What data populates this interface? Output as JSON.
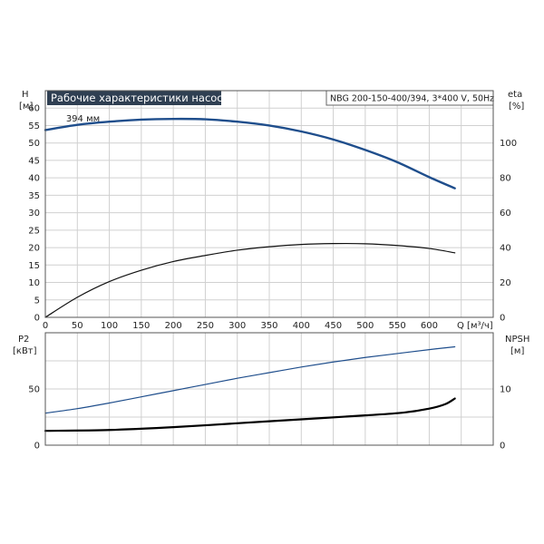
{
  "chart_data": [
    {
      "type": "line",
      "title": "Рабочие характеристики насоса",
      "model_label": "NBG 200-150-400/394, 3*400 V, 50Hz",
      "y_axis_label": "H",
      "y_axis_unit": "[м]",
      "right_axis_label": "eta",
      "right_axis_unit": "[%]",
      "x_axis_label": "Q [м³/ч]",
      "xlim": [
        0,
        700
      ],
      "ylim": [
        0,
        65
      ],
      "right_ylim": [
        0,
        130
      ],
      "x_ticks": [
        0,
        50,
        100,
        150,
        200,
        250,
        300,
        350,
        400,
        450,
        500,
        550,
        600
      ],
      "y_ticks": [
        0,
        5,
        10,
        15,
        20,
        25,
        30,
        35,
        40,
        45,
        50,
        55,
        60
      ],
      "right_y_ticks": [
        0,
        20,
        40,
        60,
        80,
        100
      ],
      "grid": true,
      "series": [
        {
          "key": "H",
          "axis": "left",
          "color": "#1f4e8c",
          "x": [
            0,
            50,
            100,
            150,
            200,
            250,
            300,
            350,
            400,
            450,
            500,
            550,
            600,
            640
          ],
          "y": [
            53.7,
            55.2,
            56.1,
            56.7,
            56.9,
            56.8,
            56.1,
            55.0,
            53.3,
            51.0,
            48.0,
            44.5,
            40.2,
            37.0
          ]
        },
        {
          "key": "eta",
          "axis": "right",
          "color": "#111111",
          "x": [
            0,
            50,
            100,
            150,
            200,
            250,
            300,
            350,
            400,
            450,
            500,
            550,
            600,
            640
          ],
          "y": [
            0,
            11.5,
            20.5,
            27.0,
            32.0,
            35.5,
            38.5,
            40.5,
            41.8,
            42.3,
            42.2,
            41.2,
            39.5,
            37.0
          ]
        }
      ],
      "annotations": [
        {
          "text": "394 мм",
          "x": 55,
          "y": 55.6
        }
      ]
    },
    {
      "type": "line",
      "y_axis_label": "P2",
      "y_axis_unit": "[кВт]",
      "right_axis_label": "NPSH",
      "right_axis_unit": "[м]",
      "xlim": [
        0,
        700
      ],
      "ylim": [
        0,
        100
      ],
      "right_ylim": [
        0,
        20
      ],
      "y_ticks": [
        0,
        50
      ],
      "right_y_ticks": [
        0,
        10
      ],
      "grid": true,
      "series": [
        {
          "key": "P2",
          "axis": "left",
          "color": "#1f4e8c",
          "x": [
            0,
            50,
            100,
            150,
            200,
            250,
            300,
            350,
            400,
            450,
            500,
            550,
            600,
            640
          ],
          "y": [
            28.5,
            32.5,
            37.5,
            43.0,
            48.5,
            54.0,
            59.5,
            64.5,
            69.5,
            74.0,
            78.0,
            81.5,
            85.0,
            87.5
          ]
        },
        {
          "key": "NPSH",
          "axis": "right",
          "color": "#000000",
          "x": [
            0,
            100,
            200,
            300,
            400,
            500,
            560,
            600,
            625,
            640
          ],
          "y": [
            2.55,
            2.7,
            3.2,
            3.9,
            4.6,
            5.3,
            5.8,
            6.5,
            7.3,
            8.3
          ]
        }
      ]
    }
  ]
}
